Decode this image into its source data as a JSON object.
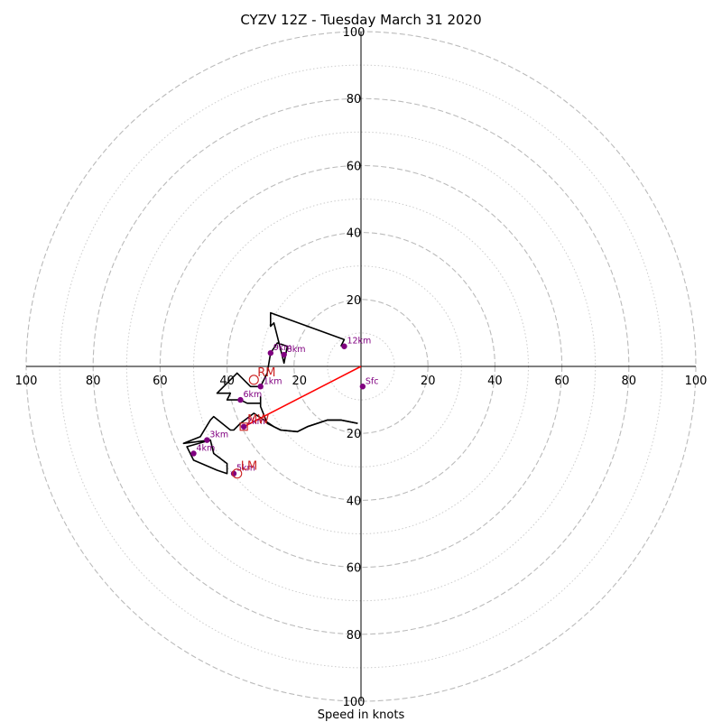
{
  "chart_data": {
    "type": "hodograph",
    "title": "CYZV 12Z - Tuesday March 31 2020",
    "xlabel": "Speed in knots",
    "range": [
      -100,
      100
    ],
    "major_rings": [
      20,
      40,
      60,
      80,
      100
    ],
    "minor_rings": [
      10,
      30,
      50,
      70,
      90
    ],
    "tick_labels": {
      "top": [
        "100",
        "80",
        "60",
        "40",
        "20"
      ],
      "bottom": [
        "20",
        "40",
        "60",
        "80",
        "100"
      ],
      "left": [
        "100",
        "80",
        "60",
        "40"
      ],
      "center_left": [
        "20"
      ],
      "right": [
        "20",
        "40",
        "60",
        "80",
        "100"
      ]
    },
    "trace": [
      [
        -1,
        -17
      ],
      [
        -6,
        -16
      ],
      [
        -10,
        -16
      ],
      [
        -16,
        -18
      ],
      [
        -19,
        -19.5
      ],
      [
        -24,
        -19
      ],
      [
        -26,
        -18
      ],
      [
        -28,
        -17
      ],
      [
        -30,
        -12
      ],
      [
        -30,
        -9
      ],
      [
        -30,
        -11
      ],
      [
        -34,
        -11
      ],
      [
        -36,
        -10
      ],
      [
        -40,
        -10
      ],
      [
        -39,
        -8
      ],
      [
        -43,
        -8
      ],
      [
        -37,
        -2
      ],
      [
        -33,
        -6
      ],
      [
        -30,
        -6
      ],
      [
        -28,
        -2
      ],
      [
        -27,
        4
      ],
      [
        -25,
        7
      ],
      [
        -22,
        6
      ],
      [
        -23,
        1
      ],
      [
        -24,
        5
      ],
      [
        -26,
        13
      ],
      [
        -27,
        12
      ],
      [
        -27,
        16
      ],
      [
        -5,
        8
      ],
      [
        -6,
        6
      ]
    ],
    "lower_trace": [
      [
        -1,
        -17
      ],
      [
        -6,
        -16
      ],
      [
        -10,
        -16
      ],
      [
        -16,
        -18
      ],
      [
        -19,
        -19.5
      ],
      [
        -24,
        -19
      ],
      [
        -26,
        -18
      ],
      [
        -32,
        -14
      ],
      [
        -36,
        -17
      ],
      [
        -38,
        -19
      ],
      [
        -39,
        -19
      ],
      [
        -44,
        -15
      ],
      [
        -45,
        -16
      ],
      [
        -48,
        -21
      ],
      [
        -53,
        -23
      ],
      [
        -45,
        -22
      ],
      [
        -44,
        -26
      ],
      [
        -40,
        -29
      ],
      [
        -40,
        -31
      ],
      [
        -40,
        -32
      ],
      [
        -43,
        -31
      ],
      [
        -50,
        -28
      ],
      [
        -52,
        -24
      ],
      [
        -45,
        -22
      ]
    ],
    "height_points": [
      {
        "label": "Sfc",
        "u": 0.5,
        "v": -6
      },
      {
        "label": "1km",
        "u": -30,
        "v": -6
      },
      {
        "label": "2km",
        "u": -35,
        "v": -18
      },
      {
        "label": "3km",
        "u": -46,
        "v": -22
      },
      {
        "label": "4km",
        "u": -50,
        "v": -26
      },
      {
        "label": "5km",
        "u": -38,
        "v": -32
      },
      {
        "label": "6km",
        "u": -36,
        "v": -10
      },
      {
        "label": "9km",
        "u": -27,
        "v": 4
      },
      {
        "label": "8km",
        "u": -23,
        "v": 3.5
      },
      {
        "label": "12km",
        "u": -5,
        "v": 6
      }
    ],
    "motions": [
      {
        "label": "RM",
        "u": -32,
        "v": -4
      },
      {
        "label": "MW",
        "u": -35,
        "v": -18
      },
      {
        "label": "LM",
        "u": -37,
        "v": -32
      }
    ],
    "storm_vector": {
      "from": [
        0,
        0
      ],
      "to": [
        -35,
        -18
      ]
    },
    "colors": {
      "trace": "#000000",
      "points": "#800080",
      "motion": "#cc2222",
      "vector": "#ff0000",
      "rings": "#bbbbbb"
    }
  }
}
